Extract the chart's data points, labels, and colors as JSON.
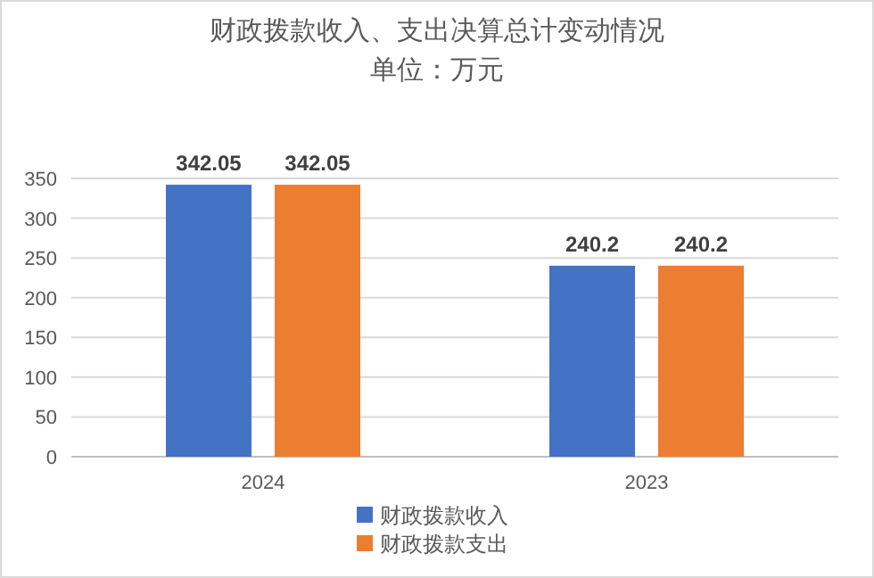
{
  "chart_data": {
    "type": "bar",
    "title": "财政拨款收入、支出决算总计变动情况",
    "subtitle": "单位：万元",
    "categories": [
      "2024",
      "2023"
    ],
    "series": [
      {
        "name": "财政拨款收入",
        "color": "#4472c4",
        "values": [
          342.05,
          240.2
        ]
      },
      {
        "name": "财政拨款支出",
        "color": "#ed7d31",
        "values": [
          342.05,
          240.2
        ]
      }
    ],
    "ylim": [
      0,
      350
    ],
    "yticks": [
      0,
      50,
      100,
      150,
      200,
      250,
      300,
      350
    ],
    "grid": "y",
    "legend": "bottom",
    "data_labels": true
  }
}
